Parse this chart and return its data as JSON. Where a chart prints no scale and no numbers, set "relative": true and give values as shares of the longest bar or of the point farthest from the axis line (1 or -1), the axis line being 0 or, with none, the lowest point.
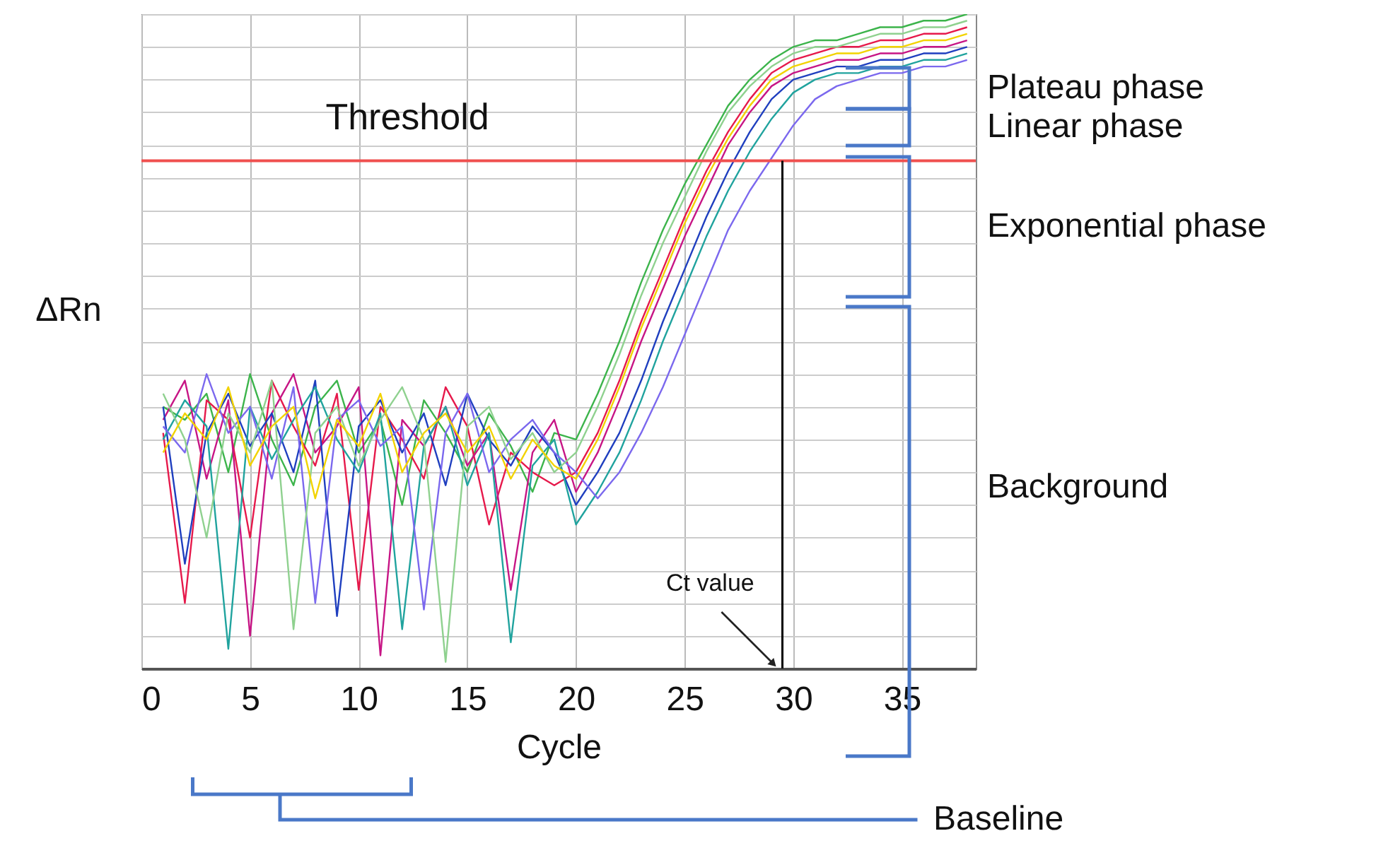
{
  "chart_data": {
    "type": "line",
    "relative": true,
    "xlabel": "Cycle",
    "ylabel": "ΔRn",
    "x": [
      1,
      2,
      3,
      4,
      5,
      6,
      7,
      8,
      9,
      10,
      11,
      12,
      13,
      14,
      15,
      16,
      17,
      18,
      19,
      20,
      21,
      22,
      23,
      24,
      25,
      26,
      27,
      28,
      29,
      30,
      31,
      32,
      33,
      34,
      35,
      36,
      37,
      38
    ],
    "xlim": [
      0,
      38.4
    ],
    "xticks": [
      0,
      5,
      10,
      15,
      20,
      25,
      30,
      35
    ],
    "grid": true,
    "series": [
      {
        "color": "#3cb44b",
        "values": [
          0.4,
          0.38,
          0.42,
          0.3,
          0.45,
          0.35,
          0.28,
          0.4,
          0.44,
          0.33,
          0.38,
          0.25,
          0.41,
          0.36,
          0.3,
          0.39,
          0.34,
          0.27,
          0.36,
          0.35,
          0.42,
          0.5,
          0.59,
          0.67,
          0.74,
          0.8,
          0.86,
          0.9,
          0.93,
          0.95,
          0.96,
          0.96,
          0.97,
          0.98,
          0.98,
          0.99,
          0.99,
          1.0
        ]
      },
      {
        "color": "#e6194b",
        "values": [
          0.36,
          0.1,
          0.41,
          0.38,
          0.2,
          0.44,
          0.37,
          0.31,
          0.42,
          0.12,
          0.4,
          0.35,
          0.29,
          0.43,
          0.37,
          0.22,
          0.33,
          0.3,
          0.28,
          0.3,
          0.36,
          0.44,
          0.53,
          0.61,
          0.69,
          0.76,
          0.82,
          0.87,
          0.91,
          0.93,
          0.94,
          0.95,
          0.95,
          0.96,
          0.96,
          0.97,
          0.97,
          0.98
        ]
      },
      {
        "color": "#c71585",
        "values": [
          0.38,
          0.44,
          0.29,
          0.41,
          0.05,
          0.39,
          0.45,
          0.33,
          0.37,
          0.43,
          0.02,
          0.38,
          0.34,
          0.4,
          0.31,
          0.36,
          0.12,
          0.33,
          0.38,
          0.27,
          0.33,
          0.41,
          0.5,
          0.58,
          0.66,
          0.73,
          0.8,
          0.85,
          0.89,
          0.91,
          0.92,
          0.93,
          0.93,
          0.94,
          0.94,
          0.95,
          0.95,
          0.96
        ]
      },
      {
        "color": "#1f3fbf",
        "values": [
          0.4,
          0.16,
          0.36,
          0.42,
          0.34,
          0.39,
          0.3,
          0.44,
          0.08,
          0.37,
          0.41,
          0.33,
          0.39,
          0.28,
          0.42,
          0.35,
          0.31,
          0.37,
          0.33,
          0.25,
          0.3,
          0.36,
          0.44,
          0.53,
          0.61,
          0.69,
          0.76,
          0.82,
          0.87,
          0.9,
          0.91,
          0.92,
          0.92,
          0.93,
          0.93,
          0.94,
          0.94,
          0.95
        ]
      },
      {
        "color": "#20a39e",
        "values": [
          0.35,
          0.41,
          0.37,
          0.03,
          0.4,
          0.32,
          0.38,
          0.43,
          0.35,
          0.3,
          0.39,
          0.06,
          0.34,
          0.4,
          0.28,
          0.36,
          0.04,
          0.31,
          0.35,
          0.22,
          0.27,
          0.33,
          0.41,
          0.5,
          0.58,
          0.66,
          0.73,
          0.79,
          0.84,
          0.88,
          0.9,
          0.91,
          0.91,
          0.92,
          0.92,
          0.93,
          0.93,
          0.94
        ]
      },
      {
        "color": "#7b68ee",
        "values": [
          0.37,
          0.33,
          0.45,
          0.36,
          0.4,
          0.29,
          0.43,
          0.1,
          0.38,
          0.41,
          0.34,
          0.37,
          0.09,
          0.36,
          0.42,
          0.3,
          0.35,
          0.38,
          0.33,
          0.3,
          0.26,
          0.3,
          0.36,
          0.43,
          0.51,
          0.59,
          0.67,
          0.73,
          0.78,
          0.83,
          0.87,
          0.89,
          0.9,
          0.91,
          0.91,
          0.92,
          0.92,
          0.93
        ]
      },
      {
        "color": "#8fd18f",
        "values": [
          0.42,
          0.35,
          0.2,
          0.39,
          0.33,
          0.44,
          0.06,
          0.36,
          0.4,
          0.31,
          0.38,
          0.43,
          0.35,
          0.01,
          0.37,
          0.4,
          0.32,
          0.36,
          0.3,
          0.33,
          0.4,
          0.48,
          0.57,
          0.65,
          0.72,
          0.79,
          0.85,
          0.89,
          0.92,
          0.94,
          0.95,
          0.95,
          0.96,
          0.97,
          0.97,
          0.98,
          0.98,
          0.99
        ]
      },
      {
        "color": "#f2d300",
        "values": [
          0.33,
          0.39,
          0.35,
          0.43,
          0.31,
          0.37,
          0.4,
          0.26,
          0.38,
          0.34,
          0.42,
          0.3,
          0.36,
          0.39,
          0.33,
          0.37,
          0.29,
          0.35,
          0.31,
          0.29,
          0.35,
          0.43,
          0.52,
          0.6,
          0.68,
          0.75,
          0.81,
          0.86,
          0.9,
          0.92,
          0.93,
          0.94,
          0.94,
          0.95,
          0.95,
          0.96,
          0.96,
          0.97
        ]
      }
    ],
    "ref_lines": [
      {
        "axis": "y",
        "value": 0.776,
        "label": "Threshold",
        "color": "#f0504f"
      },
      {
        "axis": "x",
        "value": 29.5,
        "label": null,
        "color": "#000000"
      }
    ],
    "annotations": [
      {
        "text": "Ct value",
        "x": 29.3,
        "y": 0
      },
      "Plateau phase",
      "Linear phase",
      "Exponential phase",
      "Background",
      "Baseline"
    ]
  }
}
